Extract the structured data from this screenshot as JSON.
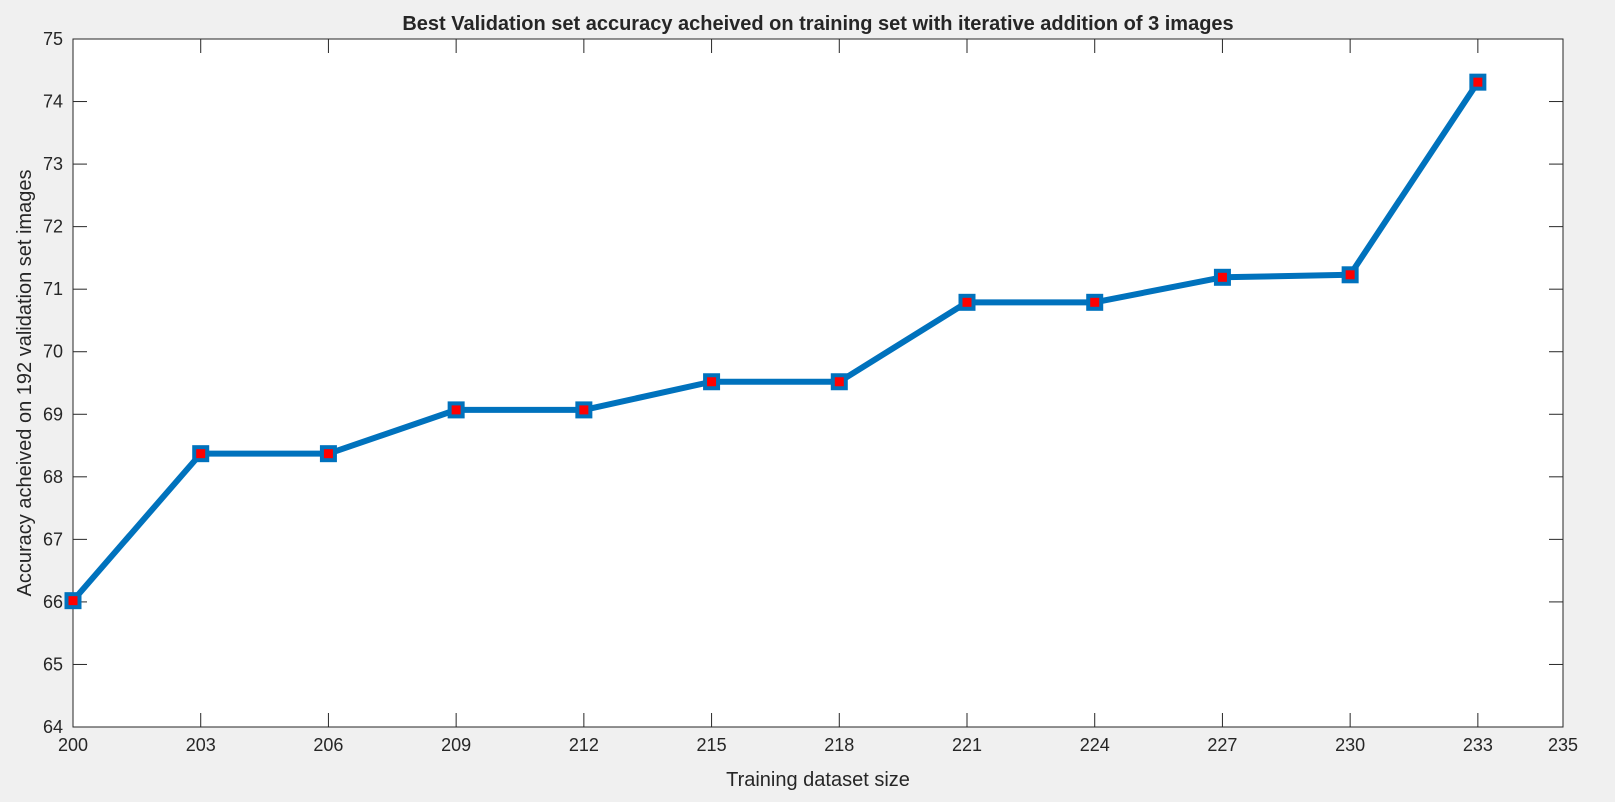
{
  "chart_data": {
    "type": "line",
    "title": "Best Validation set accuracy acheived on training set with iterative addition of 3 images",
    "xlabel": "Training dataset size",
    "ylabel": "Accuracy acheived on 192 validation set images",
    "xlim": [
      200,
      235
    ],
    "ylim": [
      64,
      75
    ],
    "xticks": [
      200,
      203,
      206,
      209,
      212,
      215,
      218,
      221,
      224,
      227,
      230,
      233,
      235
    ],
    "yticks": [
      64,
      65,
      66,
      67,
      68,
      69,
      70,
      71,
      72,
      73,
      74,
      75
    ],
    "grid": false,
    "series": [
      {
        "x": [
          200,
          203,
          206,
          209,
          212,
          215,
          218,
          221,
          224,
          227,
          230,
          233
        ],
        "y": [
          66.02,
          68.37,
          68.37,
          69.07,
          69.07,
          69.52,
          69.52,
          70.79,
          70.79,
          71.19,
          71.23,
          74.31
        ],
        "line_color": "#0072BD",
        "marker": "square",
        "marker_fill_color": "#FF0000"
      }
    ],
    "axes_background": "#ffffff",
    "figure_background": "#f0f0f0"
  }
}
